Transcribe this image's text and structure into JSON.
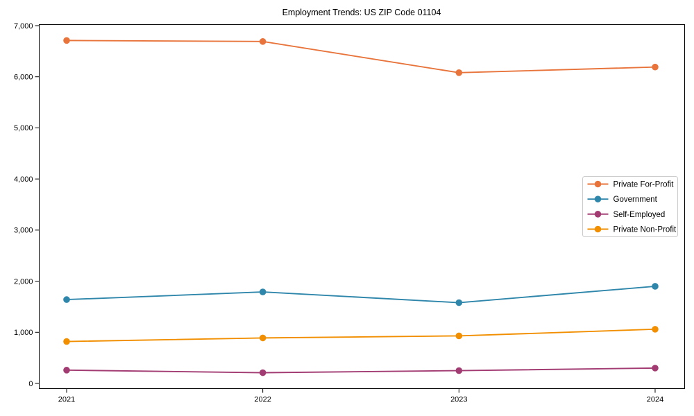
{
  "page": {
    "background_color": "#ffffff",
    "axis_color": "#000000",
    "text_color": "#000000",
    "legend_border_color": "#cccccc"
  },
  "chart_data": {
    "type": "line",
    "title": "Employment Trends: US ZIP Code 01104",
    "xlabel": "",
    "ylabel": "",
    "x": [
      2021,
      2022,
      2023,
      2024
    ],
    "x_tick_labels": [
      "2021",
      "2022",
      "2023",
      "2024"
    ],
    "ylim": [
      0,
      7000
    ],
    "yticks": [
      0,
      1000,
      2000,
      3000,
      4000,
      5000,
      6000,
      7000
    ],
    "ytick_labels": [
      "0",
      "1,000",
      "2,000",
      "3,000",
      "4,000",
      "5,000",
      "6,000",
      "7,000"
    ],
    "grid": false,
    "marker": "circle",
    "legend_position": "center-right",
    "series": [
      {
        "name": "Private For-Profit",
        "color": "#E8743B",
        "values": [
          6710,
          6690,
          6080,
          6190
        ]
      },
      {
        "name": "Government",
        "color": "#2E86AB",
        "values": [
          1640,
          1790,
          1580,
          1900
        ]
      },
      {
        "name": "Self-Employed",
        "color": "#A23B72",
        "values": [
          260,
          210,
          250,
          300
        ]
      },
      {
        "name": "Private Non-Profit",
        "color": "#F18F01",
        "values": [
          820,
          890,
          930,
          1060
        ]
      }
    ]
  }
}
